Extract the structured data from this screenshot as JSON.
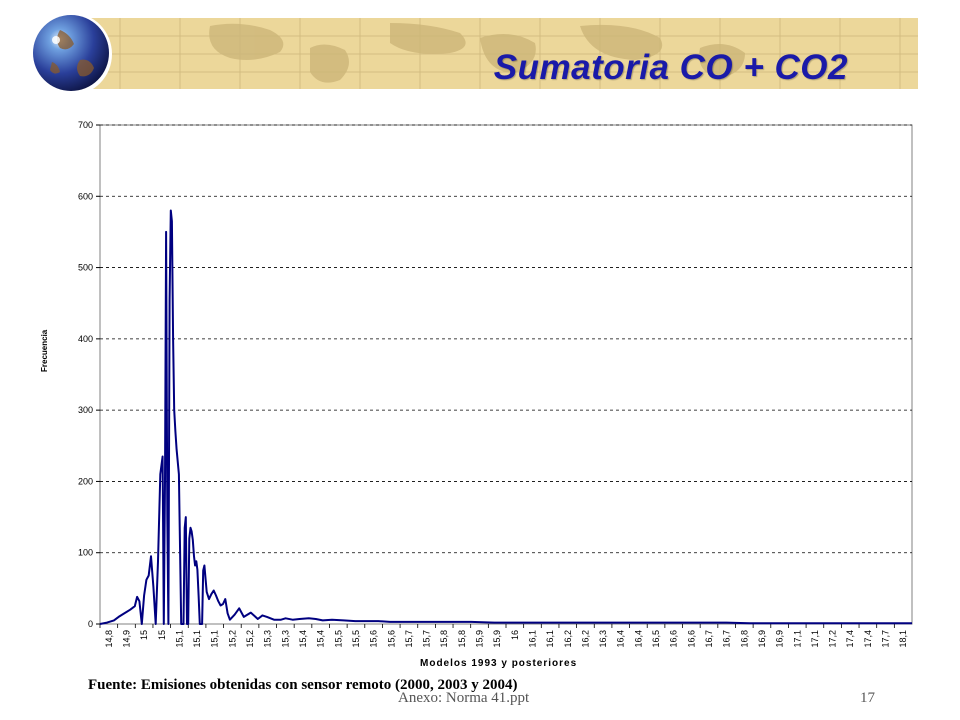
{
  "slide": {
    "title": "Sumatoria CO + CO2",
    "source": "Fuente: Emisiones obtenidas con sensor remoto (2000, 2003 y 2004)",
    "footer_file": "Anexo: Norma 41.ppt",
    "page_number": "17"
  },
  "colors": {
    "banner": "#ecd79a",
    "title": "#1a1aa8",
    "series_line": "#000080",
    "gridline": "#000000"
  },
  "chart_data": {
    "type": "line",
    "ylabel": "Frecuencia",
    "xlabel": "Modelos 1993 y posteriores",
    "ylim": [
      0,
      700
    ],
    "yticks": [
      0,
      100,
      200,
      300,
      400,
      500,
      600,
      700
    ],
    "grid": "horizontal-dashed",
    "xtick_labels": [
      "14,8",
      "14,9",
      "15",
      "15",
      "15,1",
      "15,1",
      "15,1",
      "15,2",
      "15,2",
      "15,3",
      "15,3",
      "15,4",
      "15,4",
      "15,5",
      "15,5",
      "15,6",
      "15,6",
      "15,7",
      "15,7",
      "15,8",
      "15,8",
      "15,9",
      "15,9",
      "16",
      "16,1",
      "16,1",
      "16,2",
      "16,2",
      "16,3",
      "16,4",
      "16,4",
      "16,5",
      "16,6",
      "16,6",
      "16,7",
      "16,7",
      "16,8",
      "16,9",
      "16,9",
      "17,1",
      "17,1",
      "17,2",
      "17,4",
      "17,4",
      "17,7",
      "18,1"
    ],
    "series": [
      {
        "x": [
          14.8,
          14.83,
          14.86,
          14.88,
          14.9,
          14.93,
          14.95,
          14.96,
          14.97,
          14.98,
          14.99,
          15.0,
          15.01,
          15.02,
          15.03,
          15.04,
          15.05,
          15.06,
          15.07,
          15.075,
          15.08,
          15.085,
          15.09,
          15.095,
          15.1,
          15.105,
          15.11,
          15.115,
          15.12,
          15.125,
          15.13,
          15.14,
          15.15,
          15.16,
          15.165,
          15.17,
          15.175,
          15.18,
          15.185,
          15.19,
          15.195,
          15.2,
          15.205,
          15.21,
          15.215,
          15.22,
          15.225,
          15.23,
          15.24,
          15.245,
          15.25,
          15.26,
          15.27,
          15.28,
          15.29,
          15.3,
          15.31,
          15.32,
          15.33,
          15.34,
          15.35,
          15.36,
          15.38,
          15.4,
          15.42,
          15.45,
          15.48,
          15.5,
          15.52,
          15.55,
          15.58,
          15.6,
          15.63,
          15.66,
          15.7,
          15.73,
          15.76,
          15.8,
          15.85,
          15.9,
          15.95,
          16.0,
          16.05,
          16.1,
          16.2,
          16.3,
          16.4,
          16.5,
          16.6,
          16.7,
          16.8,
          16.9,
          17.0,
          17.1,
          17.2,
          17.3,
          17.4,
          17.5,
          17.6,
          17.7,
          17.8,
          17.9,
          18.0,
          18.1,
          18.2,
          18.3
        ],
        "values": [
          0,
          2,
          5,
          10,
          14,
          20,
          25,
          38,
          32,
          0,
          40,
          62,
          68,
          95,
          52,
          0,
          88,
          210,
          235,
          0,
          200,
          550,
          150,
          0,
          455,
          580,
          565,
          400,
          300,
          270,
          245,
          210,
          0,
          0,
          135,
          150,
          0,
          0,
          120,
          135,
          130,
          118,
          95,
          82,
          88,
          76,
          40,
          0,
          0,
          75,
          82,
          45,
          35,
          42,
          47,
          40,
          32,
          26,
          28,
          35,
          15,
          6,
          13,
          22,
          10,
          16,
          7,
          12,
          10,
          6,
          6,
          8,
          6,
          7,
          8,
          7,
          5,
          6,
          5,
          4,
          4,
          4,
          3,
          3,
          3,
          3,
          3,
          2,
          2,
          2,
          2,
          2,
          2,
          2,
          2,
          2,
          2,
          2,
          1,
          1,
          1,
          1,
          1,
          1,
          1,
          1
        ]
      }
    ]
  }
}
